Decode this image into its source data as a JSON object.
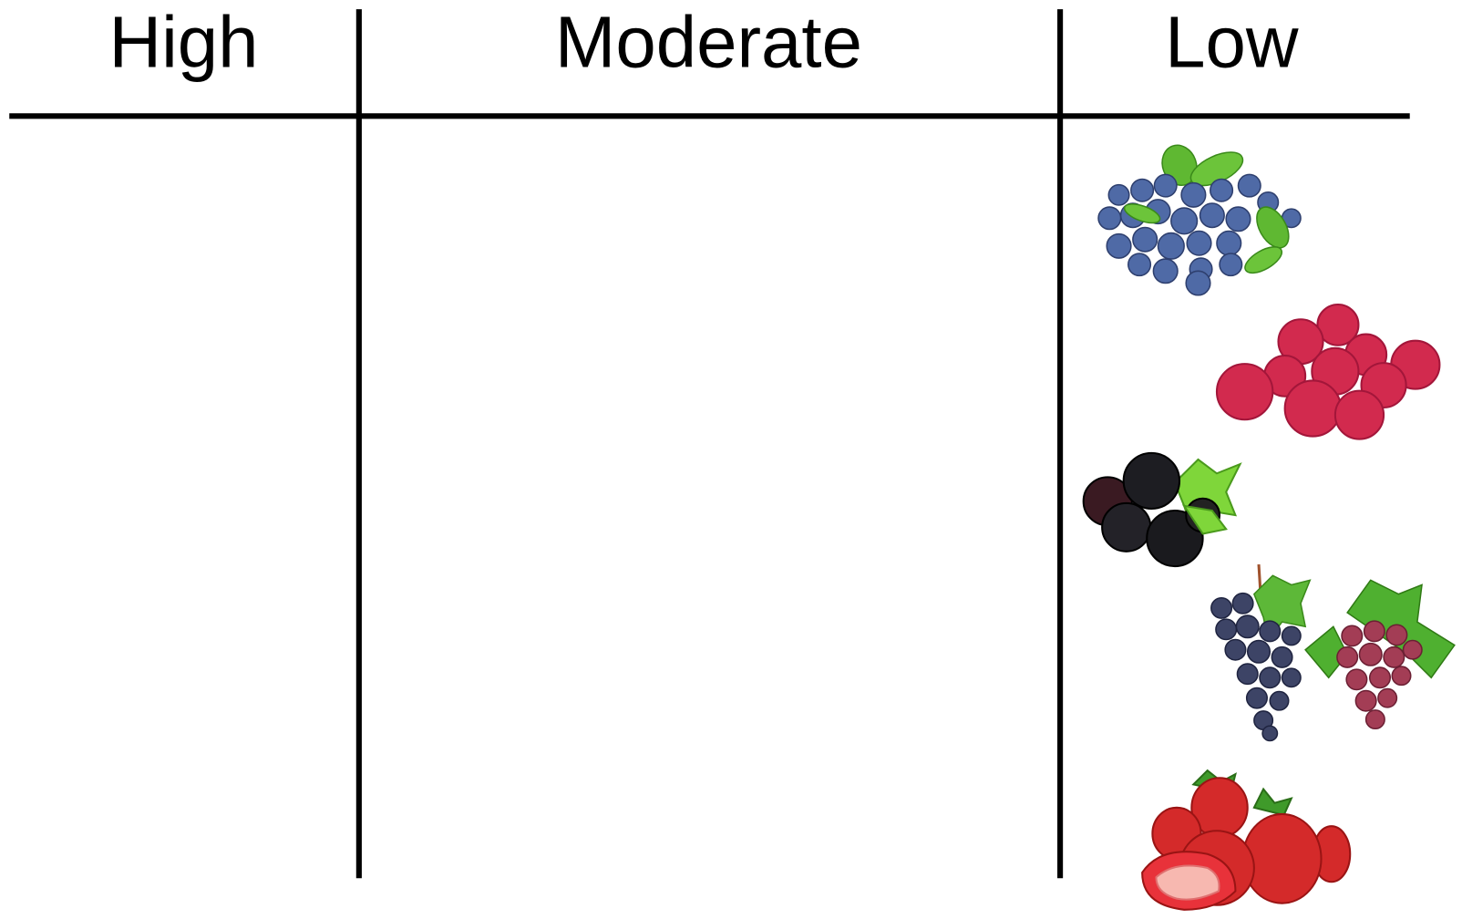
{
  "columns": [
    "High",
    "Moderate",
    "Low"
  ]
}
